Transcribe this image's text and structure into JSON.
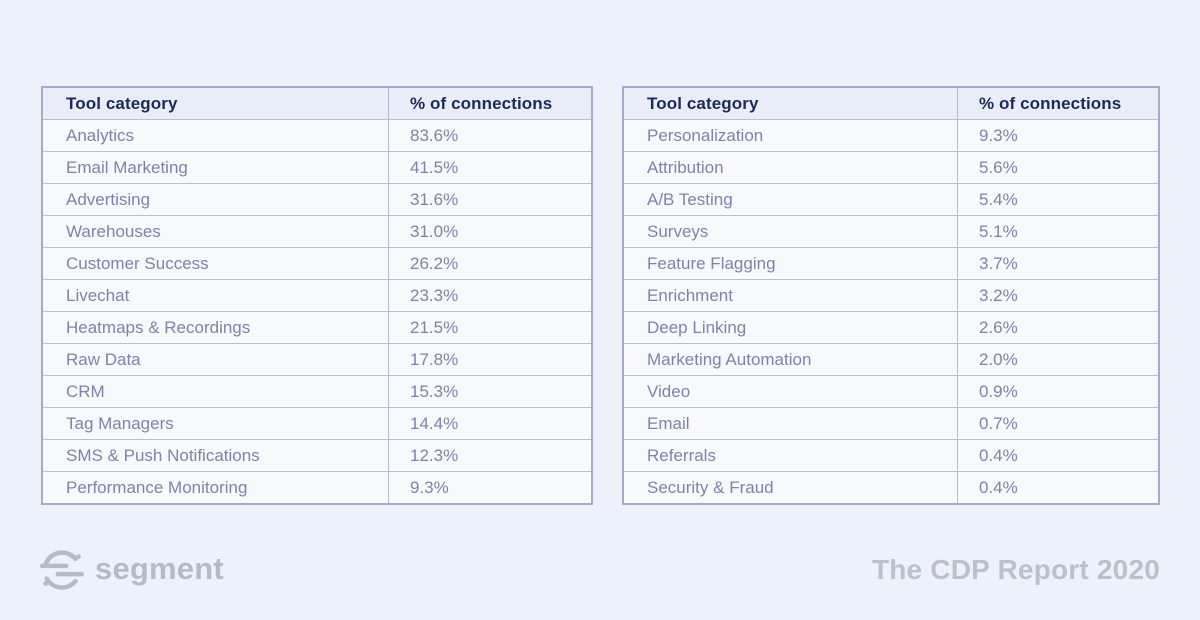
{
  "page_background": "#edf1fa",
  "chart_data": [
    {
      "type": "table",
      "position": "left",
      "columns": [
        "Tool category",
        "% of connections"
      ],
      "rows": [
        [
          "Analytics",
          "83.6%"
        ],
        [
          "Email Marketing",
          "41.5%"
        ],
        [
          "Advertising",
          "31.6%"
        ],
        [
          "Warehouses",
          "31.0%"
        ],
        [
          "Customer Success",
          "26.2%"
        ],
        [
          "Livechat",
          "23.3%"
        ],
        [
          "Heatmaps & Recordings",
          "21.5%"
        ],
        [
          "Raw Data",
          "17.8%"
        ],
        [
          "CRM",
          "15.3%"
        ],
        [
          "Tag Managers",
          "14.4%"
        ],
        [
          "SMS & Push Notifications",
          "12.3%"
        ],
        [
          "Performance Monitoring",
          "9.3%"
        ]
      ]
    },
    {
      "type": "table",
      "position": "right",
      "columns": [
        "Tool category",
        "% of connections"
      ],
      "rows": [
        [
          "Personalization",
          "9.3%"
        ],
        [
          "Attribution",
          "5.6%"
        ],
        [
          "A/B Testing",
          "5.4%"
        ],
        [
          "Surveys",
          "5.1%"
        ],
        [
          "Feature Flagging",
          "3.7%"
        ],
        [
          "Enrichment",
          "3.2%"
        ],
        [
          "Deep Linking",
          "2.6%"
        ],
        [
          "Marketing Automation",
          "2.0%"
        ],
        [
          "Video",
          "0.9%"
        ],
        [
          "Email",
          "0.7%"
        ],
        [
          "Referrals",
          "0.4%"
        ],
        [
          "Security & Fraud",
          "0.4%"
        ]
      ]
    }
  ],
  "footer": {
    "brand": "segment",
    "logo_icon": "segment-logo-icon",
    "report_title": "The CDP Report 2020"
  },
  "colors": {
    "page_background": "#edf1fa",
    "header_text": "#1b2b55",
    "row_text": "#7d84a8",
    "header_bg": "#e9edf7",
    "row_bg": "#f7f9fd",
    "border_outer": "#a6abc9",
    "border_inner": "#b9bdd8",
    "footer_gray": "#b8bcc8"
  }
}
